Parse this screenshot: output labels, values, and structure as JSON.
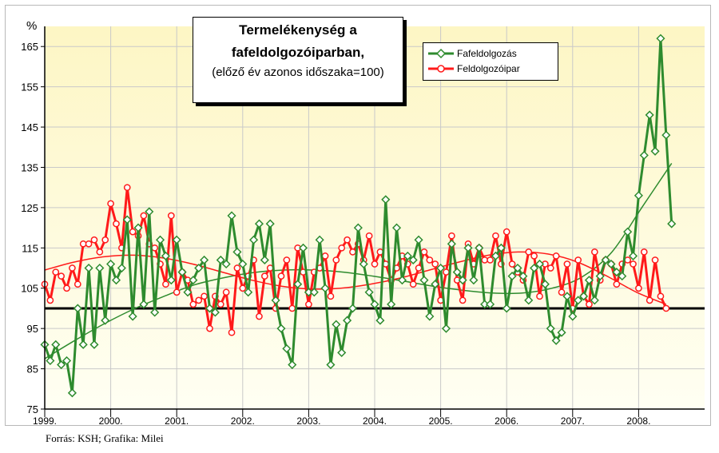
{
  "title": {
    "line1": "Termelékenység a",
    "line2": "fafeldolgozóiparban,",
    "line3": "(előző év azonos időszaka=100)"
  },
  "source": "Forrás: KSH; Grafika: Milei",
  "colors": {
    "fafeldolgozas": "#2e8b2e",
    "feldolgozoipar": "#ff1a1a",
    "background_top": "#fdf8cf",
    "background_bottom": "#fffff2"
  },
  "chart_data": {
    "type": "line",
    "ylabel": "%",
    "ylim": [
      75,
      170
    ],
    "yticks": [
      75,
      85,
      95,
      105,
      115,
      125,
      135,
      145,
      155,
      165
    ],
    "reference_line": 100,
    "x_tick_labels": [
      "1999.",
      "2000.",
      "2001.",
      "2002.",
      "2003.",
      "2004.",
      "2005.",
      "2006.",
      "2007.",
      "2008."
    ],
    "x_tick_months": [
      0,
      12,
      24,
      36,
      48,
      60,
      72,
      84,
      96,
      108
    ],
    "x_range_months": [
      0,
      120
    ],
    "months_per_point": 1,
    "legend": [
      "Fafeldolgozás",
      "Feldolgozóipar"
    ],
    "legend_position": "top-right",
    "series": [
      {
        "name": "Fafeldolgozás",
        "color": "#2e8b2e",
        "marker": "diamond",
        "values": [
          91,
          87,
          91,
          86,
          87,
          79,
          100,
          91,
          110,
          91,
          110,
          97,
          111,
          107,
          110,
          122,
          98,
          120,
          101,
          124,
          99,
          117,
          113,
          107,
          117,
          109,
          104,
          107,
          110,
          112,
          100,
          99,
          112,
          111,
          123,
          114,
          111,
          104,
          117,
          121,
          112,
          121,
          102,
          95,
          90,
          86,
          106,
          115,
          104,
          104,
          117,
          105,
          86,
          96,
          89,
          97,
          100,
          120,
          111,
          104,
          101,
          97,
          127,
          101,
          120,
          107,
          113,
          112,
          117,
          107,
          98,
          106,
          110,
          95,
          116,
          109,
          107,
          115,
          107,
          115,
          101,
          101,
          113,
          115,
          100,
          108,
          110,
          108,
          102,
          110,
          111,
          106,
          95,
          92,
          94,
          103,
          98,
          102,
          103,
          107,
          102,
          108,
          112,
          111,
          109,
          108,
          119,
          113,
          128,
          138,
          148,
          139,
          167,
          143,
          121
        ],
        "trend": [
          87.5,
          92.0,
          96.2,
          99.9,
          103.0,
          105.8,
          107.6,
          108.9,
          109.5,
          109.5,
          109.0,
          108.0,
          106.8,
          105.5,
          104.5,
          103.8,
          103.8,
          105.0,
          107.8,
          114.0,
          125.0,
          136.0
        ]
      },
      {
        "name": "Feldolgozóipar",
        "color": "#ff1a1a",
        "marker": "circle",
        "values": [
          106,
          102,
          109,
          108,
          105,
          110,
          106,
          116,
          116,
          117,
          114,
          117,
          126,
          121,
          115,
          130,
          119,
          118,
          123,
          116,
          115,
          111,
          106,
          123,
          104,
          109,
          107,
          101,
          102,
          103,
          95,
          103,
          101,
          104,
          94,
          110,
          105,
          108,
          112,
          98,
          108,
          110,
          100,
          108,
          112,
          100,
          115,
          109,
          101,
          109,
          110,
          113,
          103,
          112,
          115,
          117,
          114,
          116,
          112,
          118,
          111,
          114,
          111,
          107,
          110,
          113,
          111,
          106,
          110,
          114,
          112,
          111,
          102,
          109,
          118,
          107,
          102,
          116,
          111,
          115,
          112,
          112,
          118,
          111,
          119,
          111,
          109,
          107,
          114,
          113,
          103,
          111,
          110,
          113,
          104,
          111,
          100,
          112,
          103,
          101,
          114,
          107,
          112,
          111,
          106,
          111,
          112,
          111,
          105,
          114,
          102,
          112,
          103,
          100
        ],
        "trend": [
          109.5,
          111.5,
          112.8,
          113.2,
          112.5,
          111.0,
          109.0,
          107.0,
          105.5,
          104.8,
          105.0,
          106.0,
          107.5,
          109.5,
          111.5,
          113.2,
          114.0,
          113.5,
          111.5,
          108.0,
          104.0,
          101.0
        ]
      }
    ]
  }
}
